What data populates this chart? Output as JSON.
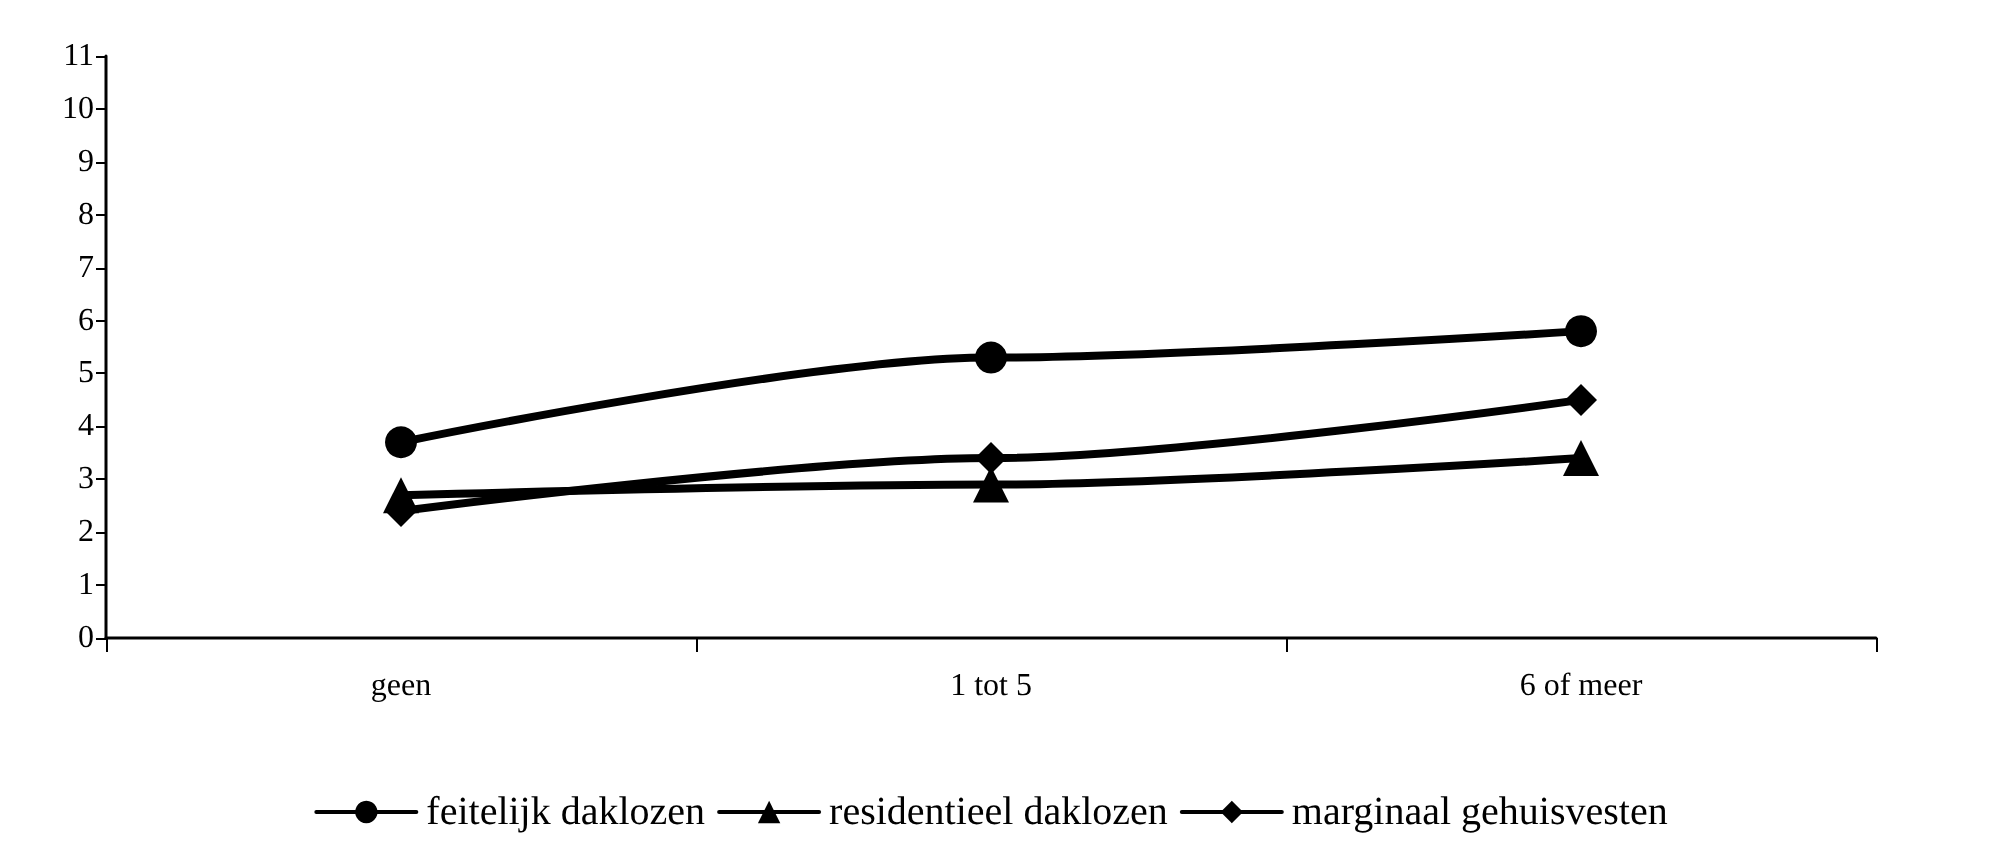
{
  "chart_data": {
    "type": "line",
    "categories": [
      "geen",
      "1 tot 5",
      "6 of meer"
    ],
    "series": [
      {
        "name": "feitelijk daklozen",
        "color": "#000000",
        "marker": "circle",
        "values": [
          3.7,
          5.3,
          5.8
        ]
      },
      {
        "name": "residentieel daklozen",
        "color": "#000000",
        "marker": "triangle",
        "values": [
          2.7,
          2.9,
          3.4
        ]
      },
      {
        "name": "marginaal gehuisvesten",
        "color": "#000000",
        "marker": "diamond",
        "values": [
          2.4,
          3.4,
          4.5
        ]
      }
    ],
    "ylim": [
      0,
      11
    ],
    "yticks": [
      0,
      1,
      2,
      3,
      4,
      5,
      6,
      7,
      8,
      9,
      10,
      11
    ],
    "grid": false,
    "legend": "bottom",
    "line_style": "solid"
  }
}
